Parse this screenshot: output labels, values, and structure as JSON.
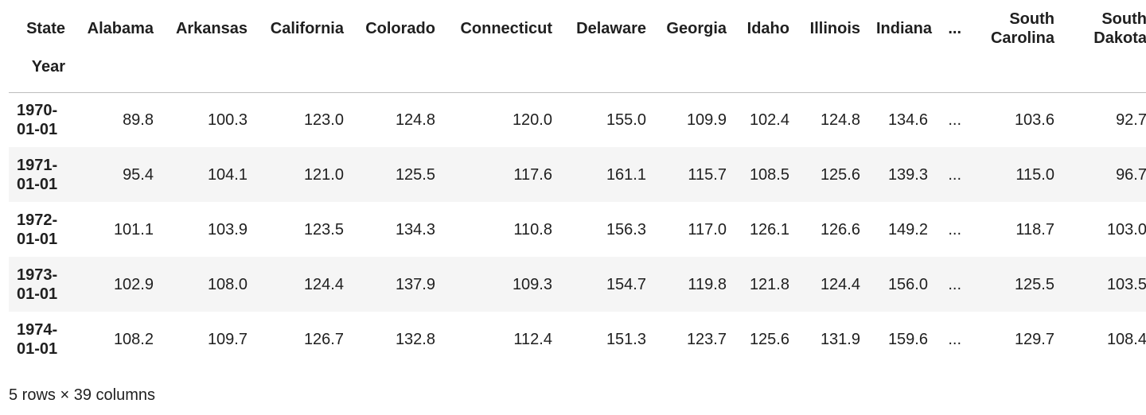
{
  "table": {
    "columns_label": "State",
    "index_label": "Year",
    "columns": [
      "Alabama",
      "Arkansas",
      "California",
      "Colorado",
      "Connecticut",
      "Delaware",
      "Georgia",
      "Idaho",
      "Illinois",
      "Indiana",
      "...",
      "South Carolina",
      "South Dakota"
    ],
    "rows": [
      {
        "index": "1970-01-01",
        "values": [
          "89.8",
          "100.3",
          "123.0",
          "124.8",
          "120.0",
          "155.0",
          "109.9",
          "102.4",
          "124.8",
          "134.6",
          "...",
          "103.6",
          "92.7"
        ]
      },
      {
        "index": "1971-01-01",
        "values": [
          "95.4",
          "104.1",
          "121.0",
          "125.5",
          "117.6",
          "161.1",
          "115.7",
          "108.5",
          "125.6",
          "139.3",
          "...",
          "115.0",
          "96.7"
        ]
      },
      {
        "index": "1972-01-01",
        "values": [
          "101.1",
          "103.9",
          "123.5",
          "134.3",
          "110.8",
          "156.3",
          "117.0",
          "126.1",
          "126.6",
          "149.2",
          "...",
          "118.7",
          "103.0"
        ]
      },
      {
        "index": "1973-01-01",
        "values": [
          "102.9",
          "108.0",
          "124.4",
          "137.9",
          "109.3",
          "154.7",
          "119.8",
          "121.8",
          "124.4",
          "156.0",
          "...",
          "125.5",
          "103.5"
        ]
      },
      {
        "index": "1974-01-01",
        "values": [
          "108.2",
          "109.7",
          "126.7",
          "132.8",
          "112.4",
          "151.3",
          "123.7",
          "125.6",
          "131.9",
          "159.6",
          "...",
          "129.7",
          "108.4"
        ]
      }
    ]
  },
  "footer": "5 rows × 39 columns"
}
